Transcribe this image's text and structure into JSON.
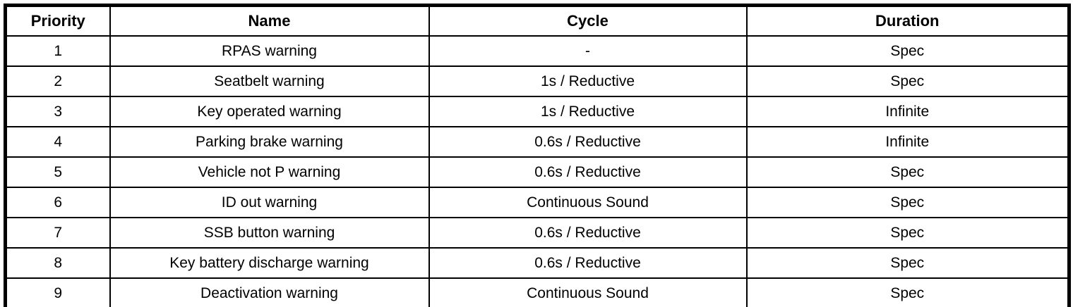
{
  "table": {
    "columns": [
      {
        "key": "priority",
        "label": "Priority"
      },
      {
        "key": "name",
        "label": "Name"
      },
      {
        "key": "cycle",
        "label": "Cycle"
      },
      {
        "key": "duration",
        "label": "Duration"
      }
    ],
    "rows": [
      {
        "priority": "1",
        "name": "RPAS warning",
        "cycle": "-",
        "duration": "Spec"
      },
      {
        "priority": "2",
        "name": "Seatbelt warning",
        "cycle": "1s / Reductive",
        "duration": "Spec"
      },
      {
        "priority": "3",
        "name": "Key operated warning",
        "cycle": "1s / Reductive",
        "duration": "Infinite"
      },
      {
        "priority": "4",
        "name": "Parking brake warning",
        "cycle": "0.6s / Reductive",
        "duration": "Infinite"
      },
      {
        "priority": "5",
        "name": "Vehicle not P warning",
        "cycle": "0.6s / Reductive",
        "duration": "Spec"
      },
      {
        "priority": "6",
        "name": "ID out warning",
        "cycle": "Continuous Sound",
        "duration": "Spec"
      },
      {
        "priority": "7",
        "name": "SSB button warning",
        "cycle": "0.6s / Reductive",
        "duration": "Spec"
      },
      {
        "priority": "8",
        "name": "Key battery discharge warning",
        "cycle": "0.6s / Reductive",
        "duration": "Spec"
      },
      {
        "priority": "9",
        "name": "Deactivation warning",
        "cycle": "Continuous Sound",
        "duration": "Spec"
      }
    ],
    "colors": {
      "border": "#000000",
      "text": "#000000",
      "background": "#ffffff"
    }
  }
}
